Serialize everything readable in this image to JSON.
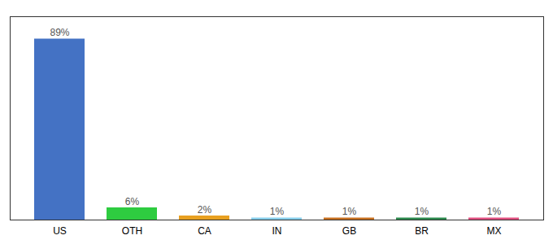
{
  "chart_data": {
    "type": "bar",
    "categories": [
      "US",
      "OTH",
      "CA",
      "IN",
      "GB",
      "BR",
      "MX"
    ],
    "values": [
      89,
      6,
      2,
      1,
      1,
      1,
      1
    ],
    "value_labels": [
      "89%",
      "6%",
      "2%",
      "1%",
      "1%",
      "1%",
      "1%"
    ],
    "data_labels": true,
    "colors": [
      "#4472c4",
      "#2ecc40",
      "#e8a020",
      "#87ceeb",
      "#c87020",
      "#2d8a4e",
      "#e05080"
    ],
    "ylim": [
      0,
      100
    ],
    "grid": false,
    "tick_labels": "x"
  }
}
